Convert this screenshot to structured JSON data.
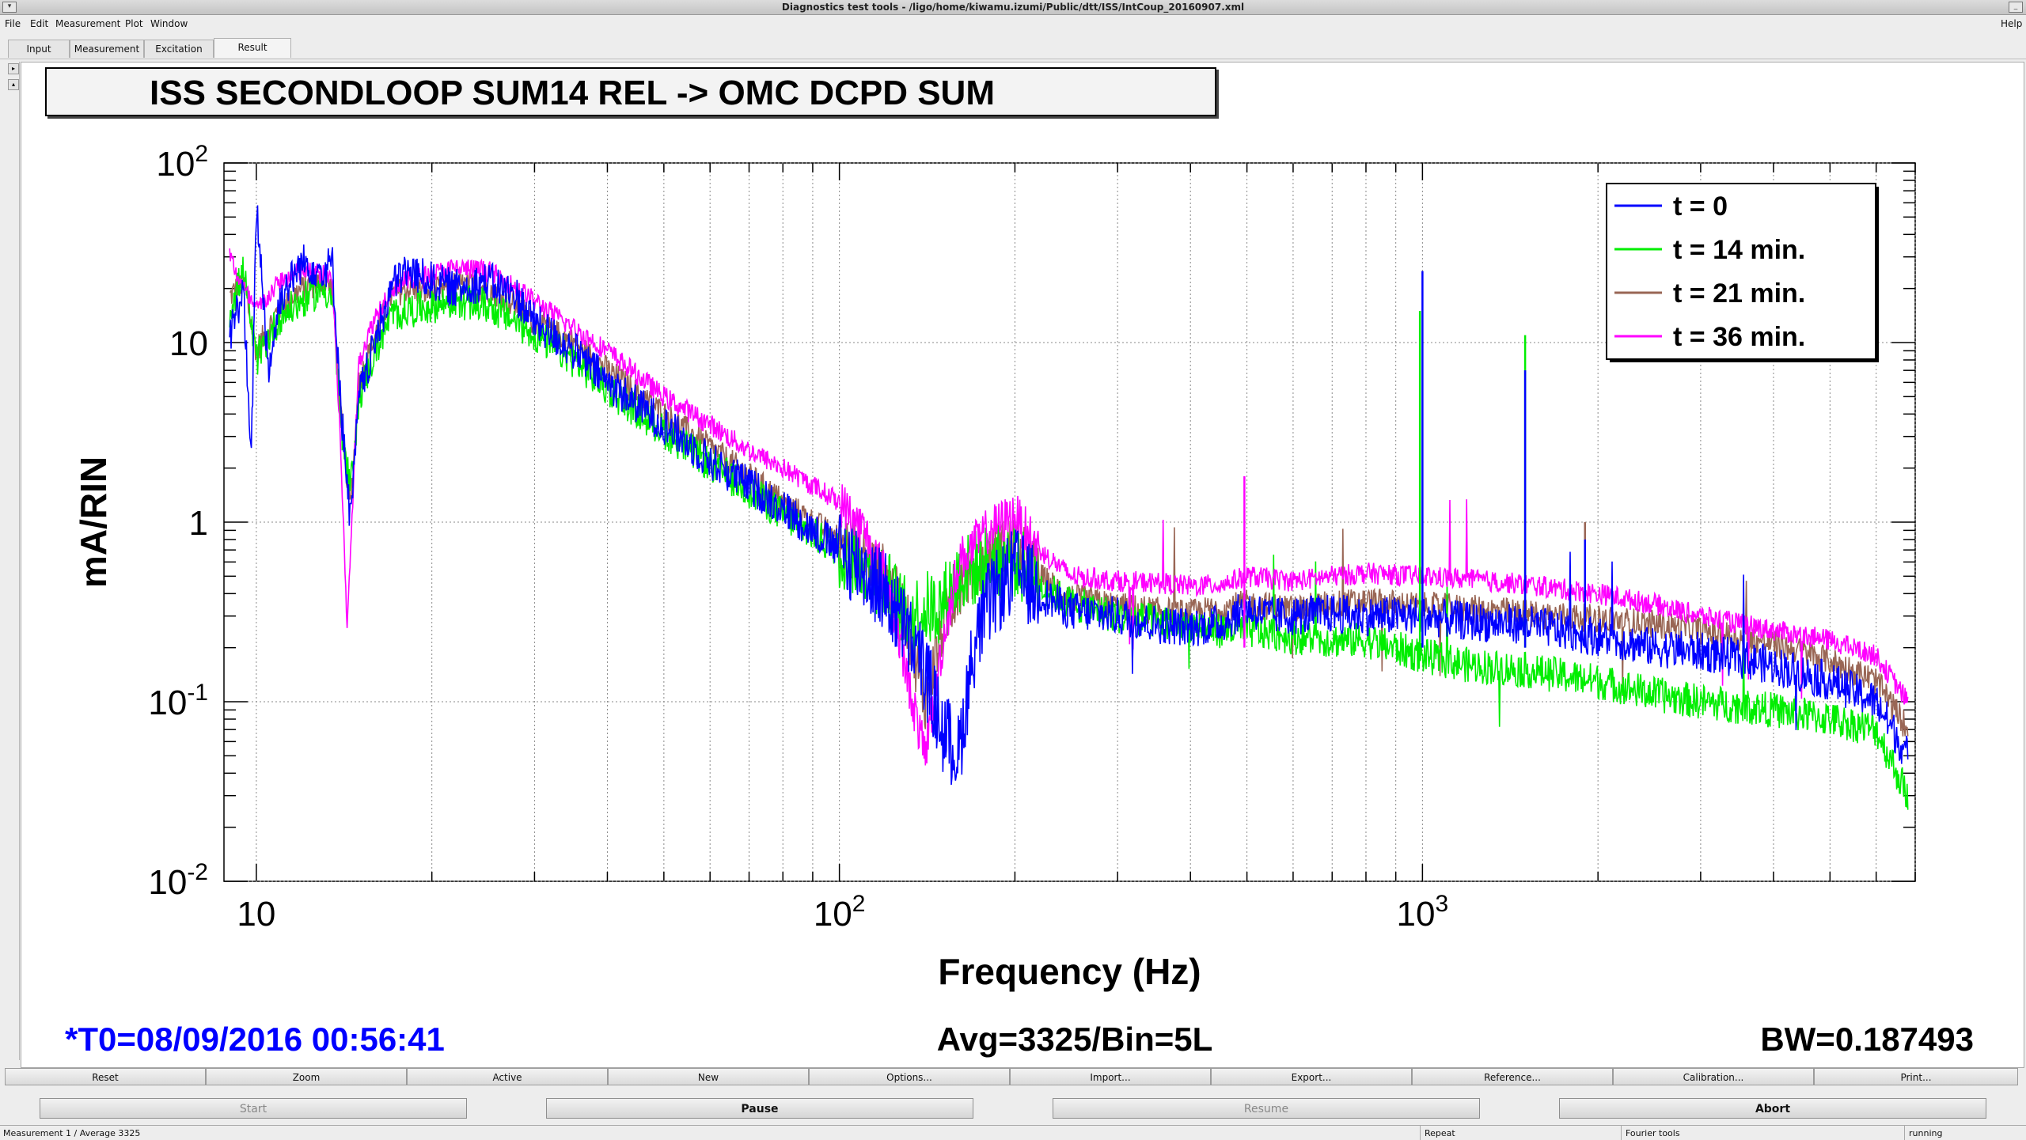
{
  "window": {
    "title": "Diagnostics test tools - /ligo/home/kiwamu.izumi/Public/dtt/ISS/IntCoup_20160907.xml"
  },
  "menu": {
    "items": [
      "File",
      "Edit",
      "Measurement",
      "Plot",
      "Window"
    ],
    "help": "Help"
  },
  "tabs": [
    "Input",
    "Measurement",
    "Excitation",
    "Result"
  ],
  "plot": {
    "title": "ISS SECONDLOOP SUM14 REL -> OMC DCPD SUM",
    "t0_label": "*T0=08/09/2016 00:56:41",
    "avg_label": "Avg=3325/Bin=5L",
    "bw_label": "BW=0.187493"
  },
  "chart_data": {
    "type": "line",
    "title": "ISS SECONDLOOP SUM14 REL -> OMC DCPD SUM",
    "xlabel": "Frequency (Hz)",
    "ylabel": "mA/RIN",
    "xscale": "log",
    "yscale": "log",
    "xlim": [
      8.8,
      7000
    ],
    "ylim": [
      0.01,
      100
    ],
    "x_ticks": [
      "10",
      "10^2",
      "10^3"
    ],
    "y_ticks": [
      "10^-2",
      "10^-1",
      "1",
      "10",
      "10^2"
    ],
    "grid": true,
    "legend_position": "top-right",
    "colors": {
      "t0": "#0000ff",
      "t14": "#00ee00",
      "t21": "#996655",
      "t36": "#ff00ff"
    },
    "series": [
      {
        "name": "t = 0",
        "color": "#0000ff",
        "points": [
          [
            9,
            11
          ],
          [
            9.5,
            20
          ],
          [
            9.8,
            2
          ],
          [
            10,
            60
          ],
          [
            10.5,
            7
          ],
          [
            11,
            18
          ],
          [
            12,
            28
          ],
          [
            13,
            25
          ],
          [
            13.5,
            28
          ],
          [
            14,
            4
          ],
          [
            14.5,
            1
          ],
          [
            15,
            5
          ],
          [
            16,
            10
          ],
          [
            17,
            20
          ],
          [
            18,
            25
          ],
          [
            20,
            22
          ],
          [
            22,
            20
          ],
          [
            25,
            22
          ],
          [
            28,
            18
          ],
          [
            30,
            13
          ],
          [
            35,
            9
          ],
          [
            40,
            6
          ],
          [
            50,
            3.5
          ],
          [
            60,
            2.2
          ],
          [
            70,
            1.6
          ],
          [
            80,
            1.2
          ],
          [
            90,
            0.9
          ],
          [
            100,
            0.7
          ],
          [
            110,
            0.55
          ],
          [
            120,
            0.4
          ],
          [
            130,
            0.25
          ],
          [
            140,
            0.15
          ],
          [
            150,
            0.07
          ],
          [
            160,
            0.05
          ],
          [
            170,
            0.2
          ],
          [
            180,
            0.35
          ],
          [
            200,
            0.55
          ],
          [
            220,
            0.4
          ],
          [
            250,
            0.32
          ],
          [
            300,
            0.3
          ],
          [
            350,
            0.27
          ],
          [
            400,
            0.26
          ],
          [
            450,
            0.27
          ],
          [
            500,
            0.33
          ],
          [
            550,
            0.3
          ],
          [
            600,
            0.3
          ],
          [
            700,
            0.31
          ],
          [
            800,
            0.3
          ],
          [
            1000,
            0.3
          ],
          [
            1200,
            0.28
          ],
          [
            1500,
            0.27
          ],
          [
            2000,
            0.23
          ],
          [
            2500,
            0.2
          ],
          [
            3000,
            0.19
          ],
          [
            4000,
            0.16
          ],
          [
            5000,
            0.13
          ],
          [
            6000,
            0.1
          ],
          [
            6800,
            0.05
          ]
        ]
      },
      {
        "name": "t = 14 min.",
        "color": "#00ee00",
        "points": [
          [
            9,
            15
          ],
          [
            9.5,
            25
          ],
          [
            10,
            8
          ],
          [
            11,
            14
          ],
          [
            12,
            17
          ],
          [
            13,
            20
          ],
          [
            13.5,
            18
          ],
          [
            14,
            3
          ],
          [
            14.5,
            1.5
          ],
          [
            15,
            5
          ],
          [
            16,
            9
          ],
          [
            17,
            14
          ],
          [
            18,
            15
          ],
          [
            20,
            16
          ],
          [
            22,
            17
          ],
          [
            25,
            16
          ],
          [
            28,
            13
          ],
          [
            30,
            11
          ],
          [
            35,
            8
          ],
          [
            40,
            5.5
          ],
          [
            50,
            3.2
          ],
          [
            60,
            2.1
          ],
          [
            70,
            1.5
          ],
          [
            80,
            1.1
          ],
          [
            90,
            0.85
          ],
          [
            100,
            0.7
          ],
          [
            110,
            0.6
          ],
          [
            120,
            0.45
          ],
          [
            130,
            0.3
          ],
          [
            150,
            0.35
          ],
          [
            160,
            0.5
          ],
          [
            180,
            0.6
          ],
          [
            200,
            0.62
          ],
          [
            220,
            0.45
          ],
          [
            250,
            0.35
          ],
          [
            300,
            0.3
          ],
          [
            350,
            0.28
          ],
          [
            400,
            0.27
          ],
          [
            450,
            0.25
          ],
          [
            500,
            0.25
          ],
          [
            600,
            0.23
          ],
          [
            700,
            0.22
          ],
          [
            800,
            0.22
          ],
          [
            1000,
            0.18
          ],
          [
            1200,
            0.16
          ],
          [
            1500,
            0.15
          ],
          [
            2000,
            0.13
          ],
          [
            2500,
            0.11
          ],
          [
            3000,
            0.1
          ],
          [
            4000,
            0.09
          ],
          [
            5000,
            0.08
          ],
          [
            6000,
            0.07
          ],
          [
            6800,
            0.03
          ]
        ]
      },
      {
        "name": "t = 21 min.",
        "color": "#996655",
        "points": [
          [
            9,
            18
          ],
          [
            9.5,
            22
          ],
          [
            10,
            9
          ],
          [
            11,
            16
          ],
          [
            12,
            20
          ],
          [
            13,
            22
          ],
          [
            13.5,
            20
          ],
          [
            14,
            3.5
          ],
          [
            14.5,
            1.2
          ],
          [
            15,
            6
          ],
          [
            16,
            11
          ],
          [
            17,
            18
          ],
          [
            18,
            20
          ],
          [
            20,
            19
          ],
          [
            22,
            21
          ],
          [
            25,
            20
          ],
          [
            28,
            16
          ],
          [
            30,
            13
          ],
          [
            35,
            10
          ],
          [
            40,
            7
          ],
          [
            50,
            4
          ],
          [
            60,
            2.6
          ],
          [
            70,
            1.8
          ],
          [
            80,
            1.3
          ],
          [
            90,
            1
          ],
          [
            100,
            0.8
          ],
          [
            110,
            0.65
          ],
          [
            120,
            0.5
          ],
          [
            130,
            0.3
          ],
          [
            140,
            0.1
          ],
          [
            150,
            0.25
          ],
          [
            160,
            0.45
          ],
          [
            180,
            0.65
          ],
          [
            200,
            0.75
          ],
          [
            220,
            0.5
          ],
          [
            250,
            0.38
          ],
          [
            300,
            0.34
          ],
          [
            350,
            0.32
          ],
          [
            400,
            0.31
          ],
          [
            450,
            0.33
          ],
          [
            500,
            0.35
          ],
          [
            600,
            0.33
          ],
          [
            700,
            0.35
          ],
          [
            800,
            0.36
          ],
          [
            1000,
            0.34
          ],
          [
            1200,
            0.33
          ],
          [
            1500,
            0.31
          ],
          [
            2000,
            0.29
          ],
          [
            2500,
            0.27
          ],
          [
            3000,
            0.25
          ],
          [
            4000,
            0.21
          ],
          [
            5000,
            0.17
          ],
          [
            6000,
            0.13
          ],
          [
            6800,
            0.07
          ]
        ]
      },
      {
        "name": "t = 36 min.",
        "color": "#ff00ff",
        "points": [
          [
            9,
            30
          ],
          [
            9.5,
            20
          ],
          [
            10,
            15
          ],
          [
            11,
            22
          ],
          [
            12,
            25
          ],
          [
            13,
            24
          ],
          [
            13.5,
            23
          ],
          [
            14,
            2
          ],
          [
            14.3,
            0.25
          ],
          [
            15,
            8
          ],
          [
            16,
            14
          ],
          [
            17,
            20
          ],
          [
            18,
            22
          ],
          [
            20,
            24
          ],
          [
            22,
            26
          ],
          [
            25,
            25
          ],
          [
            28,
            20
          ],
          [
            30,
            17
          ],
          [
            35,
            12
          ],
          [
            40,
            9
          ],
          [
            50,
            5
          ],
          [
            60,
            3.5
          ],
          [
            70,
            2.5
          ],
          [
            80,
            2
          ],
          [
            90,
            1.6
          ],
          [
            100,
            1.3
          ],
          [
            110,
            0.9
          ],
          [
            120,
            0.5
          ],
          [
            130,
            0.15
          ],
          [
            140,
            0.05
          ],
          [
            150,
            0.2
          ],
          [
            160,
            0.6
          ],
          [
            180,
            0.9
          ],
          [
            200,
            1.1
          ],
          [
            220,
            0.7
          ],
          [
            250,
            0.5
          ],
          [
            300,
            0.47
          ],
          [
            350,
            0.46
          ],
          [
            400,
            0.44
          ],
          [
            450,
            0.45
          ],
          [
            500,
            0.5
          ],
          [
            600,
            0.47
          ],
          [
            700,
            0.5
          ],
          [
            800,
            0.52
          ],
          [
            1000,
            0.5
          ],
          [
            1200,
            0.48
          ],
          [
            1500,
            0.45
          ],
          [
            2000,
            0.4
          ],
          [
            2500,
            0.35
          ],
          [
            3000,
            0.3
          ],
          [
            4000,
            0.25
          ],
          [
            5000,
            0.22
          ],
          [
            6000,
            0.18
          ],
          [
            6800,
            0.1
          ]
        ]
      }
    ]
  },
  "legend": [
    "t = 0",
    "t = 14 min.",
    "t = 21 min.",
    "t = 36 min."
  ],
  "buttons": [
    "Reset",
    "Zoom",
    "Active",
    "New",
    "Options...",
    "Import...",
    "Export...",
    "Reference...",
    "Calibration...",
    "Print..."
  ],
  "controls": [
    "Start",
    "Pause",
    "Resume",
    "Abort"
  ],
  "status": {
    "left": "Measurement 1 / Average 3325",
    "mid": "Repeat",
    "tool": "Fourier tools",
    "state": "running"
  }
}
